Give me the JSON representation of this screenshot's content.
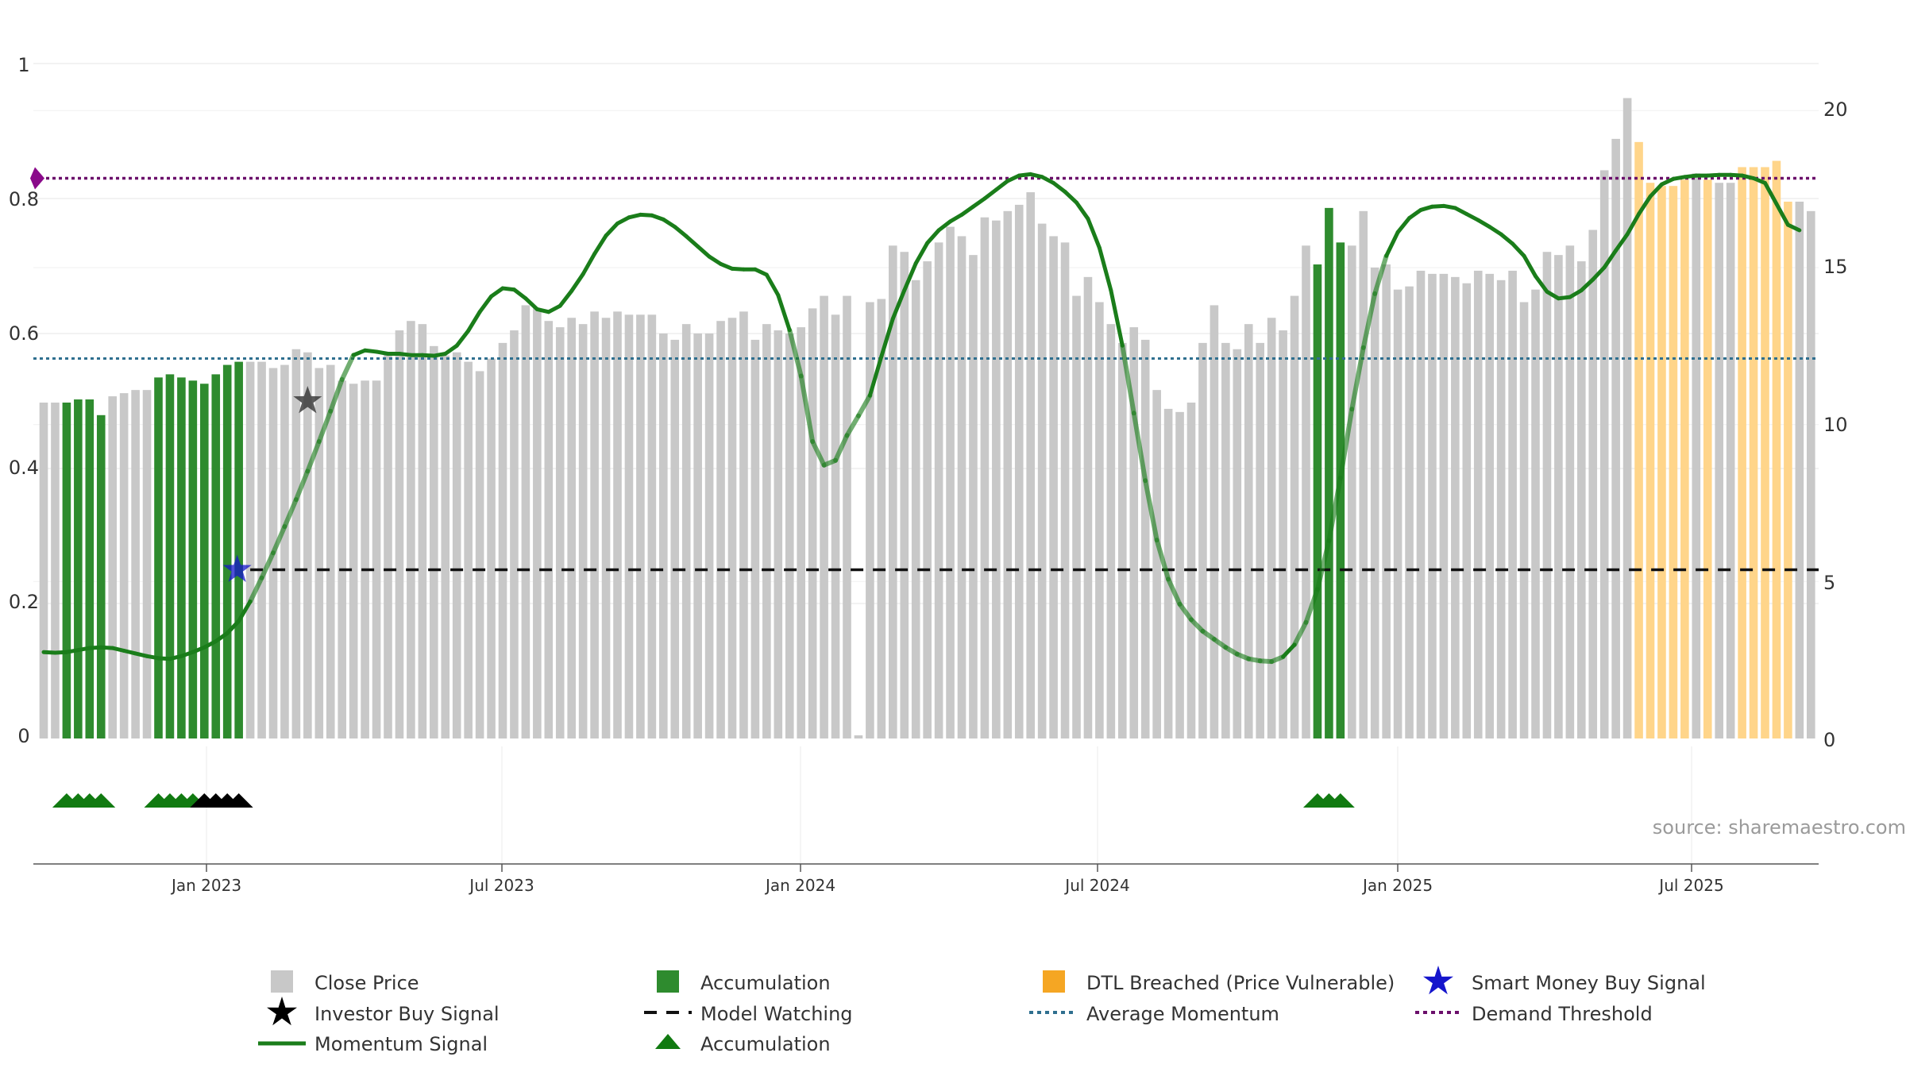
{
  "chart_data": {
    "type": "bar",
    "title": "",
    "source": "source: sharemaestro.com",
    "x_ticks": [
      "Jan 2023",
      "Jul 2023",
      "Jan 2024",
      "Jul 2024",
      "Jan 2025",
      "Jul 2025"
    ],
    "left_axis": {
      "range": [
        0,
        1
      ],
      "ticks": [
        "0",
        "0.2",
        "0.4",
        "0.6",
        "0.8",
        "1"
      ]
    },
    "right_axis": {
      "range": [
        0,
        21.5
      ],
      "ticks": [
        "0",
        "5",
        "10",
        "15",
        "20"
      ]
    },
    "start_week": "2022-09-12",
    "interval_days": 7,
    "close_price": [
      10.7,
      10.7,
      10.7,
      10.8,
      10.8,
      10.3,
      10.9,
      11.0,
      11.1,
      11.1,
      11.5,
      11.6,
      11.5,
      11.4,
      11.3,
      11.6,
      11.9,
      12.0,
      12.0,
      12.0,
      11.8,
      11.9,
      12.4,
      12.3,
      11.8,
      11.9,
      11.4,
      11.3,
      11.4,
      11.4,
      12.3,
      13.0,
      13.3,
      13.2,
      12.5,
      12.2,
      12.3,
      12.0,
      11.7,
      12.1,
      12.6,
      13.0,
      13.8,
      13.7,
      13.3,
      13.1,
      13.4,
      13.2,
      13.6,
      13.4,
      13.6,
      13.5,
      13.5,
      13.5,
      12.9,
      12.7,
      13.2,
      12.9,
      12.9,
      13.3,
      13.4,
      13.6,
      12.7,
      13.2,
      13.0,
      12.9,
      13.1,
      13.7,
      14.1,
      13.5,
      14.1,
      0.1,
      13.9,
      14.0,
      15.7,
      15.5,
      14.6,
      15.2,
      15.8,
      16.3,
      16.0,
      15.4,
      16.6,
      16.5,
      16.8,
      17.0,
      17.4,
      16.4,
      16.0,
      15.8,
      14.1,
      14.7,
      13.9,
      13.2,
      12.6,
      13.1,
      12.7,
      11.1,
      10.5,
      10.4,
      10.7,
      12.6,
      13.8,
      12.6,
      12.4,
      13.2,
      12.6,
      13.4,
      13.0,
      14.1,
      15.7,
      15.1,
      16.9,
      15.8,
      15.7,
      16.8,
      15.0,
      15.1,
      14.3,
      14.4,
      14.9,
      14.8,
      14.8,
      14.7,
      14.5,
      14.9,
      14.8,
      14.6,
      14.9,
      13.9,
      14.3,
      15.5,
      15.4,
      15.7,
      15.2,
      16.2,
      18.1,
      19.1,
      20.4,
      19.0,
      17.7,
      17.6,
      17.6,
      17.8,
      18.0,
      17.8,
      17.7,
      17.7,
      18.2,
      18.2,
      18.2,
      18.4,
      17.1,
      17.1,
      16.8
    ],
    "accumulation_bars": [
      2,
      3,
      4,
      5,
      10,
      11,
      12,
      13,
      14,
      15,
      16,
      17,
      111,
      112,
      113
    ],
    "dtl_breached_bars": [
      139,
      140,
      141,
      142,
      143,
      145,
      148,
      149,
      150,
      151,
      152
    ],
    "momentum_signal": [
      0.128,
      0.127,
      0.128,
      0.131,
      0.134,
      0.135,
      0.134,
      0.13,
      0.126,
      0.122,
      0.119,
      0.118,
      0.122,
      0.128,
      0.135,
      0.144,
      0.156,
      0.174,
      0.203,
      0.238,
      0.275,
      0.314,
      0.354,
      0.396,
      0.44,
      0.485,
      0.532,
      0.568,
      0.575,
      0.573,
      0.57,
      0.57,
      0.568,
      0.568,
      0.567,
      0.57,
      0.582,
      0.604,
      0.632,
      0.655,
      0.667,
      0.665,
      0.652,
      0.636,
      0.632,
      0.641,
      0.663,
      0.688,
      0.718,
      0.745,
      0.763,
      0.772,
      0.776,
      0.775,
      0.769,
      0.758,
      0.744,
      0.729,
      0.714,
      0.703,
      0.696,
      0.695,
      0.695,
      0.687,
      0.657,
      0.605,
      0.537,
      0.44,
      0.405,
      0.412,
      0.449,
      0.478,
      0.508,
      0.566,
      0.622,
      0.664,
      0.704,
      0.734,
      0.753,
      0.766,
      0.776,
      0.788,
      0.8,
      0.813,
      0.826,
      0.834,
      0.836,
      0.832,
      0.823,
      0.81,
      0.794,
      0.77,
      0.727,
      0.664,
      0.582,
      0.482,
      0.382,
      0.294,
      0.236,
      0.199,
      0.176,
      0.159,
      0.147,
      0.135,
      0.125,
      0.118,
      0.115,
      0.114,
      0.121,
      0.139,
      0.172,
      0.221,
      0.293,
      0.386,
      0.488,
      0.579,
      0.659,
      0.715,
      0.75,
      0.771,
      0.783,
      0.788,
      0.789,
      0.786,
      0.777,
      0.768,
      0.758,
      0.747,
      0.733,
      0.715,
      0.685,
      0.662,
      0.652,
      0.654,
      0.664,
      0.68,
      0.698,
      0.723,
      0.747,
      0.777,
      0.803,
      0.821,
      0.829,
      0.832,
      0.834,
      0.834,
      0.835,
      0.835,
      0.834,
      0.83,
      0.823,
      0.792,
      0.761,
      0.753
    ],
    "momentum_fade_ranges": [
      [
        18,
        27
      ],
      [
        65,
        72
      ],
      [
        94,
        108
      ],
      [
        109,
        117
      ]
    ],
    "average_momentum": 0.563,
    "demand_threshold": 0.83,
    "model_watching": 0.25,
    "model_watching_start_bar": 18,
    "investor_buy_signal": {
      "bar": 23,
      "value": 0.5
    },
    "smart_money_buy_signal": {
      "bar": 17,
      "value": 0.25
    },
    "accumulation_markers": [
      {
        "bars": [
          2,
          3,
          4,
          5
        ],
        "color": "green"
      },
      {
        "bars": [
          10,
          11,
          12,
          13
        ],
        "color": "green"
      },
      {
        "bars": [
          14,
          15,
          16,
          17
        ],
        "color": "black"
      },
      {
        "bars": [
          111,
          112,
          113
        ],
        "color": "green"
      }
    ],
    "legend": [
      {
        "label": "Close Price",
        "symbol": "gray-square"
      },
      {
        "label": "Investor Buy Signal",
        "symbol": "black-star"
      },
      {
        "label": "Momentum Signal",
        "symbol": "green-line"
      },
      {
        "label": "Accumulation",
        "symbol": "green-square"
      },
      {
        "label": "Model Watching",
        "symbol": "black-dash"
      },
      {
        "label": "Accumulation",
        "symbol": "green-triangle"
      },
      {
        "label": "DTL Breached (Price Vulnerable)",
        "symbol": "orange-square"
      },
      {
        "label": "Average Momentum",
        "symbol": "blue-dotted"
      },
      {
        "label": "Smart Money Buy Signal",
        "symbol": "blue-star"
      },
      {
        "label": "Demand Threshold",
        "symbol": "purple-dotted"
      }
    ],
    "colors": {
      "close_price": "#c8c8c8",
      "accumulation": "#2e8b2e",
      "dtl_breached": "#ffd58a",
      "momentum": "#1a7d1a",
      "average_momentum": "#2f6f8f",
      "demand_threshold": "#6b0f6b",
      "model_watching": "#111111",
      "investor_star": "#333333",
      "smart_money_star": "#1515cc",
      "marker_green": "#117a11",
      "marker_black": "#000000"
    }
  }
}
